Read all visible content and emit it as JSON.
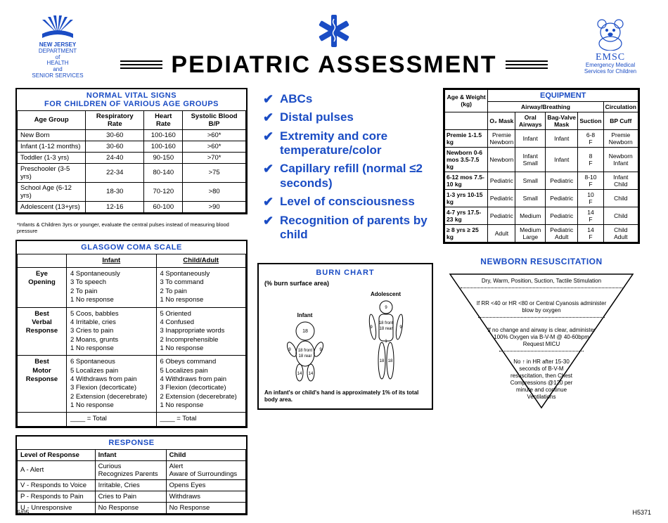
{
  "colors": {
    "accent": "#1a4cc4",
    "text": "#000000",
    "bg": "#ffffff"
  },
  "header": {
    "left_logo": {
      "line1": "NEW JERSEY",
      "line2": "DEPARTMENT",
      "line3": "of",
      "line4": "HEALTH",
      "line5": "and",
      "line6": "SENIOR SERVICES"
    },
    "title": "PEDIATRIC ASSESSMENT",
    "right_logo": {
      "line1": "EMSC",
      "line2": "Emergency Medical",
      "line3": "Services for Children"
    }
  },
  "vitals": {
    "title1": "NORMAL VITAL SIGNS",
    "title2": "FOR CHILDREN OF VARIOUS AGE GROUPS",
    "cols": [
      "Age Group",
      "Respiratory Rate",
      "Heart Rate",
      "Systolic Blood B/P"
    ],
    "rows": [
      [
        "New Born",
        "30-60",
        "100-160",
        ">60*"
      ],
      [
        "Infant (1-12 months)",
        "30-60",
        "100-160",
        ">60*"
      ],
      [
        "Toddler (1-3 yrs)",
        "24-40",
        "90-150",
        ">70*"
      ],
      [
        "Preschooler (3-5 yrs)",
        "22-34",
        "80-140",
        ">75"
      ],
      [
        "School Age (6-12 yrs)",
        "18-30",
        "70-120",
        ">80"
      ],
      [
        "Adolescent (13+yrs)",
        "12-16",
        "60-100",
        ">90"
      ]
    ],
    "footnote": "*Infants & Children 3yrs or younger, evaluate the central pulses instead of measuring blood pressure"
  },
  "gcs": {
    "title": "GLASGOW COMA SCALE",
    "col_infant": "Infant",
    "col_child": "Child/Adult",
    "rows": [
      {
        "cat": "Eye Opening",
        "infant": [
          "4 Spontaneously",
          "3 To speech",
          "2 To pain",
          "1 No response"
        ],
        "child": [
          "4 Spontaneously",
          "3 To command",
          "2 To pain",
          "1 No response"
        ]
      },
      {
        "cat": "Best Verbal Response",
        "infant": [
          "5 Coos, babbles",
          "4 Irritable, cries",
          "3 Cries to pain",
          "2 Moans, grunts",
          "1 No response"
        ],
        "child": [
          "5 Oriented",
          "4 Confused",
          "3 Inappropriate words",
          "2 Incomprehensible",
          "1 No response"
        ]
      },
      {
        "cat": "Best Motor Response",
        "infant": [
          "6 Spontaneous",
          "5 Localizes pain",
          "4 Withdraws from pain",
          "3 Flexion (decorticate)",
          "2 Extension (decerebrate)",
          "1 No response"
        ],
        "child": [
          "6 Obeys command",
          "5 Localizes pain",
          "4 Withdraws from pain",
          "3 Flexion (decorticate)",
          "2 Extension (decerebrate)",
          "1 No response"
        ]
      }
    ],
    "total": "____ = Total"
  },
  "response": {
    "title": "RESPONSE",
    "cols": [
      "Level of Response",
      "Infant",
      "Child"
    ],
    "rows": [
      [
        "A - Alert",
        "Curious\nRecognizes Parents",
        "Alert\nAware of Surroundings"
      ],
      [
        "V - Responds to Voice",
        "Irritable, Cries",
        "Opens Eyes"
      ],
      [
        "P - Responds to Pain",
        "Cries to Pain",
        "Withdraws"
      ],
      [
        "U - Unresponsive",
        "No Response",
        "No Response"
      ]
    ]
  },
  "checklist": [
    "ABCs",
    "Distal pulses",
    "Extremity and core temperature/color",
    "Capillary refill (normal ≤2 seconds)",
    "Level of consciousness",
    "Recognition of parents by child"
  ],
  "burn": {
    "title": "BURN CHART",
    "subtitle": "(% burn surface area)",
    "label_infant": "Infant",
    "label_adolescent": "Adolescent",
    "infant_regions": {
      "head": "18",
      "front": "18 front",
      "rear": "18 rear",
      "arm": "9",
      "leg": "14"
    },
    "adolescent_regions": {
      "head": "9",
      "front": "18 front",
      "rear": "18 rear",
      "arm": "9",
      "leg": "18",
      "groin": "1"
    },
    "footnote": "An infant's or child's hand is approximately 1% of its total body area."
  },
  "equipment": {
    "title": "EQUIPMENT",
    "h_age": "Age & Weight (kg)",
    "h_airway": "Airway/Breathing",
    "h_circ": "Circulation",
    "sub": [
      "O₂ Mask",
      "Oral Airways",
      "Bag-Valve Mask",
      "Suction",
      "BP Cuff"
    ],
    "rows": [
      [
        "Premie 1-1.5 kg",
        "Premie Newborn",
        "Infant",
        "Infant",
        "6-8 F",
        "Premie Newborn"
      ],
      [
        "Newborn 0-6 mos 3.5-7.5 kg",
        "Newborn",
        "Infant Small",
        "Infant",
        "8 F",
        "Newborn Infant"
      ],
      [
        "6-12 mos 7.5-10 kg",
        "Pediatric",
        "Small",
        "Pediatric",
        "8-10 F",
        "Infant Child"
      ],
      [
        "1-3 yrs 10-15 kg",
        "Pediatric",
        "Small",
        "Pediatric",
        "10 F",
        "Child"
      ],
      [
        "4-7 yrs 17.5-23 kg",
        "Pediatric",
        "Medium",
        "Pediatric",
        "14 F",
        "Child"
      ],
      [
        "≥ 8 yrs ≥ 25 kg",
        "Adult",
        "Medium Large",
        "Pediatric Adult",
        "14 F",
        "Child Adult"
      ]
    ]
  },
  "resus": {
    "title": "NEWBORN RESUSCITATION",
    "steps": [
      "Dry, Warm, Position, Suction, Tactile Stimulation",
      "If RR <40 or HR <80 or Central Cyanosis administer blow by oxygen",
      "If no change and airway is clear, administer 100% Oxygen via B-V-M @ 40-60bpm Request MICU",
      "No ↑ in HR after 15-30 seconds of B-V-M resuscitation, then Chest Compressions @120 per minute and continue Ventilations"
    ]
  },
  "footer": {
    "left": "6/05",
    "right": "H5371"
  }
}
